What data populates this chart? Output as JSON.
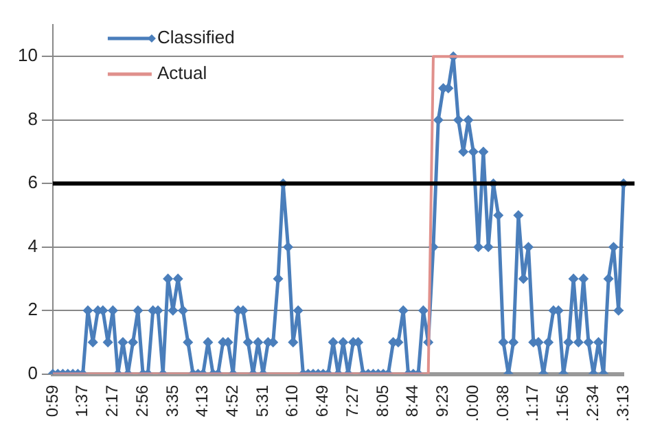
{
  "chart_data": {
    "type": "line",
    "categories": [
      "0:59",
      null,
      null,
      null,
      null,
      null,
      "1:37",
      null,
      null,
      null,
      null,
      null,
      "2:17",
      null,
      null,
      null,
      null,
      null,
      "2:56",
      null,
      null,
      null,
      null,
      null,
      "3:35",
      null,
      null,
      null,
      null,
      null,
      "4:13",
      null,
      null,
      null,
      null,
      null,
      "4:52",
      null,
      null,
      null,
      null,
      null,
      "5:31",
      null,
      null,
      null,
      null,
      null,
      "6:10",
      null,
      null,
      null,
      null,
      null,
      "6:49",
      null,
      null,
      null,
      null,
      null,
      "7:27",
      null,
      null,
      null,
      null,
      null,
      "8:05",
      null,
      null,
      null,
      null,
      null,
      "8:44",
      null,
      null,
      null,
      null,
      null,
      "9:23",
      null,
      null,
      null,
      null,
      null,
      ".0:00",
      null,
      null,
      null,
      null,
      null,
      ".0:38",
      null,
      null,
      null,
      null,
      null,
      ".1:17",
      null,
      null,
      null,
      null,
      null,
      ".1:56",
      null,
      null,
      null,
      null,
      null,
      ".2:34",
      null,
      null,
      null,
      null,
      null,
      ".3:13"
    ],
    "series": [
      {
        "name": "Classified",
        "color": "#4a7ebb",
        "marker": "diamond",
        "values": [
          0,
          0,
          0,
          0,
          0,
          0,
          0,
          2,
          1,
          2,
          2,
          1,
          2,
          0,
          1,
          0,
          1,
          2,
          0,
          0,
          2,
          2,
          0,
          3,
          2,
          3,
          2,
          1,
          0,
          0,
          0,
          1,
          0,
          0,
          1,
          1,
          0,
          2,
          2,
          1,
          0,
          1,
          0,
          1,
          1,
          3,
          6,
          4,
          1,
          2,
          0,
          0,
          0,
          0,
          0,
          0,
          1,
          0,
          1,
          0,
          1,
          1,
          0,
          0,
          0,
          0,
          0,
          0,
          1,
          1,
          2,
          0,
          0,
          0,
          2,
          1,
          4,
          8,
          9,
          9,
          10,
          8,
          7,
          8,
          7,
          4,
          7,
          4,
          6,
          5,
          1,
          0,
          1,
          5,
          3,
          4,
          1,
          1,
          0,
          1,
          2,
          2,
          0,
          1,
          3,
          1,
          3,
          1,
          0,
          1,
          0,
          3,
          4,
          2,
          6
        ]
      },
      {
        "name": "Actual",
        "color": "#e0908c",
        "marker": "none",
        "values": [
          0,
          0,
          0,
          0,
          0,
          0,
          0,
          0,
          0,
          0,
          0,
          0,
          0,
          0,
          0,
          0,
          0,
          0,
          0,
          0,
          0,
          0,
          0,
          0,
          0,
          0,
          0,
          0,
          0,
          0,
          0,
          0,
          0,
          0,
          0,
          0,
          0,
          0,
          0,
          0,
          0,
          0,
          0,
          0,
          0,
          0,
          0,
          0,
          0,
          0,
          0,
          0,
          0,
          0,
          0,
          0,
          0,
          0,
          0,
          0,
          0,
          0,
          0,
          0,
          0,
          0,
          0,
          0,
          0,
          0,
          0,
          0,
          0,
          0,
          0,
          0,
          10,
          10,
          10,
          10,
          10,
          10,
          10,
          10,
          10,
          10,
          10,
          10,
          10,
          10,
          10,
          10,
          10,
          10,
          10,
          10,
          10,
          10,
          10,
          10,
          10,
          10,
          10,
          10,
          10,
          10,
          10,
          10,
          10,
          10,
          10,
          10,
          10,
          10,
          10
        ]
      }
    ],
    "ylim": [
      0,
      11
    ],
    "yticks": [
      0,
      2,
      4,
      6,
      8,
      10
    ],
    "grid": "y",
    "legend": "top left",
    "ref_lines": [
      {
        "axis": "y",
        "value": 6,
        "color": "#000000"
      }
    ]
  }
}
